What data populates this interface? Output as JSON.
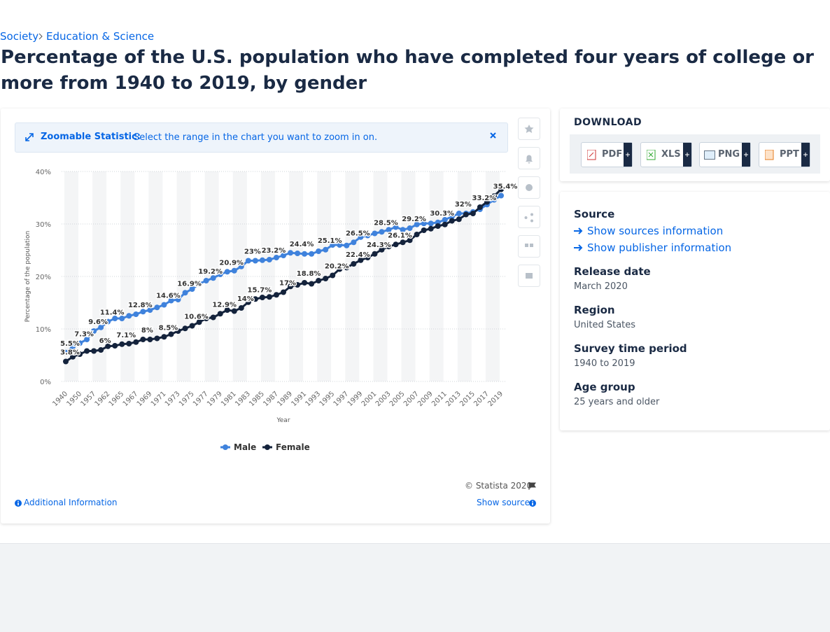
{
  "breadcrumb": [
    "Society",
    "Education & Science"
  ],
  "title": "Percentage of the U.S. population who have completed four years of college or more from 1940 to 2019, by gender",
  "zoom_banner": {
    "label": "Zoomable Statistic:",
    "text": "Select the range in the chart you want to zoom in on."
  },
  "chart_data": {
    "type": "line",
    "x_label": "Year",
    "y_label": "Percentage of the population",
    "categories": [
      "1940",
      null,
      "1950",
      null,
      "1957",
      null,
      "1962",
      null,
      "1965",
      null,
      "1967",
      null,
      "1969",
      null,
      "1971",
      null,
      "1973",
      null,
      "1975",
      null,
      "1977",
      null,
      "1979",
      null,
      "1981",
      null,
      "1983",
      null,
      "1985",
      null,
      "1987",
      null,
      "1989",
      null,
      "1991",
      null,
      "1993",
      null,
      "1995",
      null,
      "1997",
      null,
      "1999",
      null,
      "2001",
      null,
      "2003",
      null,
      "2005",
      null,
      "2007",
      null,
      "2009",
      null,
      "2011",
      null,
      "2013",
      null,
      "2015",
      null,
      "2017",
      null,
      "2019"
    ],
    "series": [
      {
        "name": "Male",
        "color": "#3f82dc",
        "values": [
          5.5,
          6.6,
          7.3,
          8,
          9.6,
          10.3,
          11.4,
          12,
          12,
          12.5,
          12.8,
          13.3,
          13.6,
          14.1,
          14.6,
          15.4,
          15.6,
          16.9,
          17.6,
          18.6,
          19.2,
          19.7,
          20.4,
          20.9,
          21.1,
          21.9,
          23,
          23,
          23.1,
          23.2,
          23.6,
          24,
          24.5,
          24.4,
          24.3,
          24.3,
          24.8,
          25.1,
          26,
          26,
          25.9,
          26.5,
          27.5,
          27.8,
          28.2,
          28.5,
          28.9,
          29.4,
          28.9,
          29.2,
          29.9,
          30.1,
          30.1,
          30.3,
          30.8,
          31.4,
          32,
          32,
          32.3,
          32.8,
          33.7,
          34.6,
          35.4
        ],
        "value_labels": [
          "5.5%",
          null,
          "7.3%",
          null,
          "9.6%",
          null,
          "11.4%",
          null,
          null,
          null,
          "12.8%",
          null,
          null,
          null,
          "14.6%",
          null,
          null,
          "16.9%",
          null,
          null,
          "19.2%",
          null,
          null,
          "20.9%",
          null,
          null,
          "23%",
          null,
          null,
          "23.2%",
          null,
          null,
          null,
          "24.4%",
          null,
          null,
          null,
          "25.1%",
          null,
          null,
          null,
          "26.5%",
          null,
          null,
          null,
          "28.5%",
          null,
          null,
          null,
          "29.2%",
          null,
          null,
          null,
          "30.3%",
          null,
          null,
          "32%",
          null,
          null,
          null,
          null,
          null,
          "35.4%"
        ]
      },
      {
        "name": "Female",
        "color": "#14233c",
        "values": [
          3.8,
          4.7,
          5.2,
          5.8,
          5.8,
          6,
          6.7,
          6.8,
          7.1,
          7.2,
          7.5,
          8,
          8,
          8.2,
          8.5,
          9,
          9.6,
          10.1,
          10.6,
          11.3,
          12,
          12.2,
          12.9,
          13.6,
          13.4,
          14,
          15.1,
          15.7,
          16,
          16.1,
          16.5,
          17,
          18.1,
          18.4,
          18.8,
          18.6,
          19.2,
          19.6,
          20.2,
          21.4,
          21.7,
          22.4,
          23.1,
          23.6,
          24.3,
          25.1,
          25.7,
          26.1,
          26.5,
          26.9,
          28,
          28.8,
          29.1,
          29.6,
          29.9,
          30.6,
          30.9,
          31.8,
          32,
          33.2,
          34.2,
          35.3,
          36.6
        ],
        "value_labels": [
          "3.8%",
          null,
          null,
          null,
          null,
          "6%",
          null,
          null,
          "7.1%",
          null,
          null,
          "8%",
          null,
          null,
          "8.5%",
          null,
          null,
          null,
          "10.6%",
          null,
          null,
          null,
          "12.9%",
          null,
          null,
          "14%",
          null,
          "15.7%",
          null,
          null,
          null,
          "17%",
          null,
          null,
          "18.8%",
          null,
          null,
          null,
          "20.2%",
          null,
          null,
          "22.4%",
          null,
          null,
          "24.3%",
          null,
          null,
          "26.1%",
          null,
          null,
          null,
          null,
          null,
          null,
          null,
          null,
          null,
          null,
          null,
          "33.2%",
          null,
          null,
          null
        ]
      }
    ],
    "ylim": [
      0,
      40
    ],
    "yticks": [
      {
        "value": 0,
        "label": "0%"
      },
      {
        "value": 10,
        "label": "10%"
      },
      {
        "value": 20,
        "label": "20%"
      },
      {
        "value": 30,
        "label": "30%"
      },
      {
        "value": 40,
        "label": "40%"
      }
    ],
    "grid": true
  },
  "copyright": "© Statista 2020",
  "additional_info": "Additional Information",
  "show_source": "Show source",
  "download": {
    "title": "DOWNLOAD",
    "formats": [
      "PDF",
      "XLS",
      "PNG",
      "PPT"
    ]
  },
  "details": {
    "source_title": "Source",
    "links": [
      "Show sources information",
      "Show publisher information"
    ],
    "items": [
      {
        "label": "Release date",
        "value": "March 2020"
      },
      {
        "label": "Region",
        "value": "United States"
      },
      {
        "label": "Survey time period",
        "value": "1940 to 2019"
      },
      {
        "label": "Age group",
        "value": "25 years and older"
      }
    ]
  }
}
